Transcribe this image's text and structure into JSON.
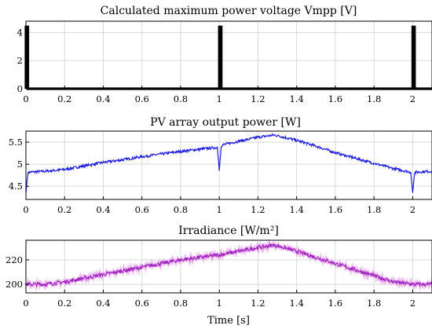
{
  "chart_data": [
    {
      "type": "line",
      "title": "Calculated maximum power voltage Vmpp [V]",
      "xlim": [
        0,
        2.1
      ],
      "ylim": [
        0,
        4.8
      ],
      "xticks": [
        "0",
        "0.2",
        "0.4",
        "0.6",
        "0.8",
        "1",
        "1.2",
        "1.4",
        "1.6",
        "1.8",
        "2"
      ],
      "yticks": [
        "0",
        "2",
        "4"
      ],
      "grid": true,
      "series": [
        {
          "color": "#000000",
          "x": [
            0,
            0,
            0.01,
            0.01,
            1.0,
            1.0,
            1.01,
            1.01,
            2.0,
            2.0,
            2.01,
            2.01,
            2.1
          ],
          "y": [
            0,
            4.4,
            4.4,
            0,
            0,
            4.4,
            4.4,
            0,
            0,
            4.4,
            4.4,
            0,
            0
          ]
        }
      ]
    },
    {
      "type": "line",
      "title": "PV array output power [W]",
      "xlim": [
        0,
        2.1
      ],
      "ylim": [
        4.2,
        5.75
      ],
      "xticks": [
        "0",
        "0.2",
        "0.4",
        "0.6",
        "0.8",
        "1",
        "1.2",
        "1.4",
        "1.6",
        "1.8",
        "2"
      ],
      "yticks": [
        "4.5",
        "5",
        "5.5"
      ],
      "grid": true,
      "series": [
        {
          "color": "#1f1fdf",
          "x": [
            0,
            0.01,
            0.02,
            0.1,
            0.2,
            0.3,
            0.4,
            0.5,
            0.6,
            0.7,
            0.8,
            0.9,
            0.99,
            1.0,
            1.01,
            1.02,
            1.1,
            1.2,
            1.28,
            1.3,
            1.4,
            1.5,
            1.6,
            1.7,
            1.8,
            1.9,
            1.99,
            2.0,
            2.01,
            2.02,
            2.1
          ],
          "y": [
            4.35,
            4.8,
            4.82,
            4.84,
            4.88,
            4.96,
            5.04,
            5.1,
            5.17,
            5.23,
            5.29,
            5.34,
            5.38,
            4.85,
            5.42,
            5.44,
            5.52,
            5.61,
            5.66,
            5.65,
            5.54,
            5.41,
            5.26,
            5.14,
            5.02,
            4.9,
            4.82,
            4.35,
            4.8,
            4.82,
            4.84
          ]
        }
      ]
    },
    {
      "type": "line",
      "title": "Irradiance [W/m²]",
      "xlabel": "Time [s]",
      "xlim": [
        0,
        2.1
      ],
      "ylim": [
        193,
        236
      ],
      "xticks": [
        "0",
        "0.2",
        "0.4",
        "0.6",
        "0.8",
        "1",
        "1.2",
        "1.4",
        "1.6",
        "1.8",
        "2"
      ],
      "yticks": [
        "200",
        "220"
      ],
      "grid": true,
      "series": [
        {
          "color": "#a020c0",
          "x": [
            0,
            0.1,
            0.2,
            0.3,
            0.4,
            0.5,
            0.6,
            0.7,
            0.8,
            0.9,
            1.0,
            1.1,
            1.2,
            1.28,
            1.3,
            1.4,
            1.5,
            1.6,
            1.7,
            1.8,
            1.9,
            2.0,
            2.1
          ],
          "y": [
            200,
            200,
            202,
            205,
            208,
            211,
            214,
            217,
            220,
            222,
            224,
            227,
            230,
            232,
            231.5,
            227,
            222,
            217,
            212,
            207,
            202,
            200,
            200
          ]
        }
      ]
    }
  ]
}
